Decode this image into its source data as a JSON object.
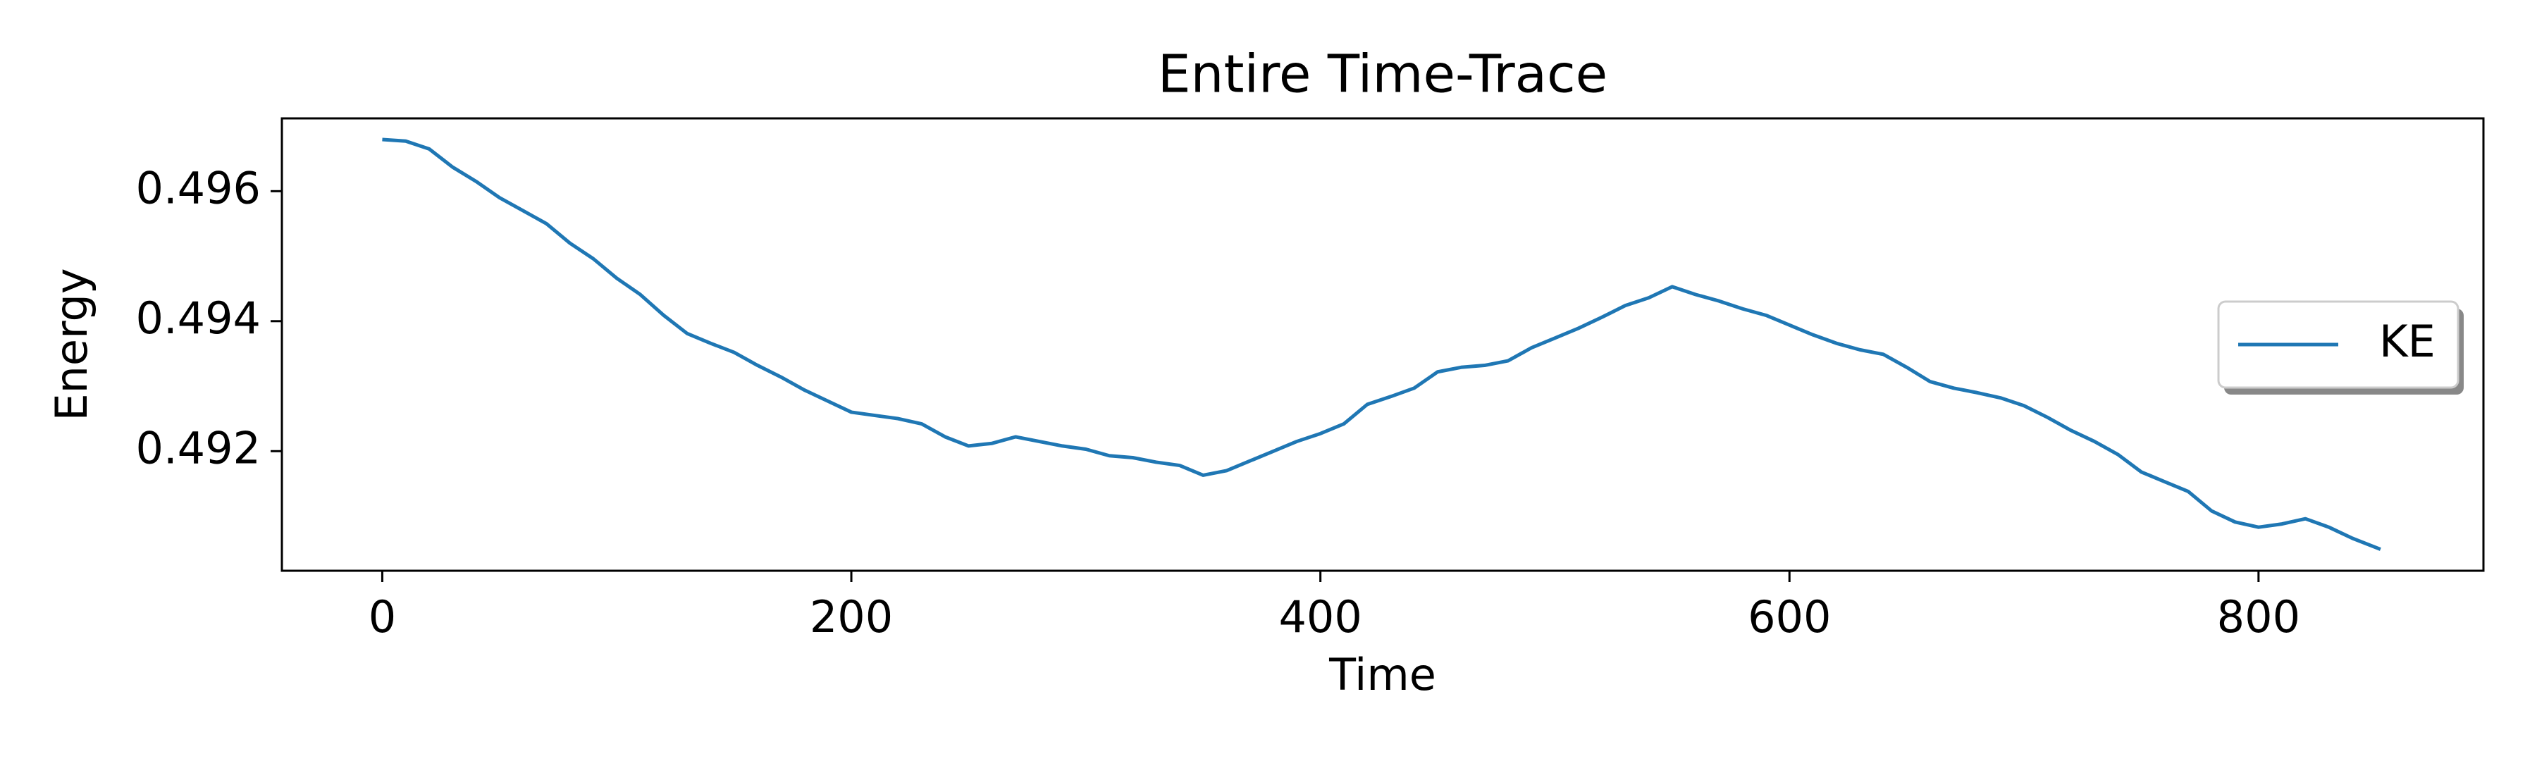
{
  "chart_data": {
    "type": "line",
    "title": "Entire Time-Trace",
    "xlabel": "Time",
    "ylabel": "Energy",
    "x": [
      0,
      10,
      20,
      30,
      40,
      50,
      60,
      70,
      80,
      90,
      100,
      110,
      120,
      130,
      140,
      150,
      160,
      170,
      180,
      190,
      200,
      210,
      220,
      230,
      240,
      250,
      260,
      270,
      280,
      290,
      300,
      310,
      320,
      330,
      340,
      350,
      360,
      370,
      380,
      390,
      400,
      410,
      420,
      430,
      440,
      450,
      460,
      470,
      480,
      490,
      500,
      510,
      520,
      530,
      540,
      550,
      560,
      570,
      580,
      590,
      600,
      610,
      620,
      630,
      640,
      650,
      660,
      670,
      680,
      690,
      700,
      710,
      720,
      730,
      740,
      750,
      760,
      770,
      780,
      790,
      800,
      810,
      820,
      830,
      840,
      852
    ],
    "series": [
      {
        "name": "KE",
        "color": "#1f77b4",
        "values": [
          0.496795,
          0.49677,
          0.49665,
          0.49637,
          0.49615,
          0.4959,
          0.4957,
          0.4955,
          0.4952,
          0.49496,
          0.49466,
          0.49441,
          0.49409,
          0.49381,
          0.49366,
          0.49352,
          0.49332,
          0.49314,
          0.49294,
          0.49277,
          0.4926,
          0.49255,
          0.4925,
          0.49242,
          0.49222,
          0.49208,
          0.49212,
          0.49222,
          0.49215,
          0.49208,
          0.49203,
          0.49193,
          0.4919,
          0.49183,
          0.49178,
          0.49163,
          0.4917,
          0.49185,
          0.492,
          0.49215,
          0.49227,
          0.49242,
          0.49272,
          0.49284,
          0.49297,
          0.49322,
          0.49329,
          0.49332,
          0.49339,
          0.49359,
          0.49374,
          0.49389,
          0.49406,
          0.49424,
          0.49436,
          0.49453,
          0.49441,
          0.49431,
          0.49419,
          0.49409,
          0.49394,
          0.49379,
          0.49366,
          0.49356,
          0.49349,
          0.49329,
          0.49307,
          0.49297,
          0.4929,
          0.49282,
          0.4927,
          0.49252,
          0.49232,
          0.49215,
          0.49195,
          0.49168,
          0.49153,
          0.49138,
          0.49108,
          0.49091,
          0.49083,
          0.49088,
          0.49096,
          0.49083,
          0.49066,
          0.49049
        ]
      }
    ],
    "xlim": [
      -42.8,
      895.9
    ],
    "xticks": [
      0,
      200,
      400,
      600,
      800
    ],
    "ylim": [
      0.49016,
      0.49712
    ],
    "yticks": [
      0.492,
      0.494,
      0.496
    ],
    "legend": "center right"
  }
}
